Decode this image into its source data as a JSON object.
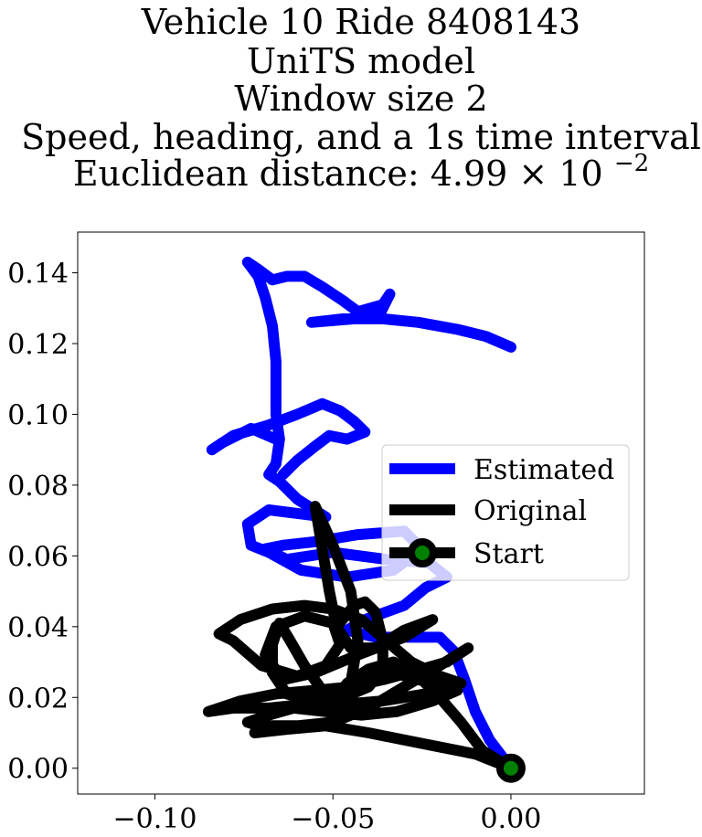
{
  "chart_data": {
    "type": "line",
    "title_lines": [
      "Vehicle 10 Ride 8408143",
      "UniTS model",
      "Window size 2",
      "Speed, heading, and a 1s time interval",
      "Euclidean distance: 4.99"
    ],
    "title_suffix": {
      "times": "×",
      "base": "10",
      "exponent": "−2"
    },
    "xlabel": "",
    "ylabel": "",
    "xlim": [
      -0.1217,
      0.0375
    ],
    "ylim": [
      -0.0073,
      0.1515
    ],
    "x_ticks": [
      {
        "value": -0.1,
        "label": "−0.10"
      },
      {
        "value": -0.05,
        "label": "−0.05"
      },
      {
        "value": 0.0,
        "label": "0.00"
      }
    ],
    "y_ticks": [
      {
        "value": 0.0,
        "label": "0.00"
      },
      {
        "value": 0.02,
        "label": "0.02"
      },
      {
        "value": 0.04,
        "label": "0.04"
      },
      {
        "value": 0.06,
        "label": "0.06"
      },
      {
        "value": 0.08,
        "label": "0.08"
      },
      {
        "value": 0.1,
        "label": "0.10"
      },
      {
        "value": 0.12,
        "label": "0.12"
      },
      {
        "value": 0.14,
        "label": "0.14"
      }
    ],
    "grid": false,
    "legend_position": "center-right",
    "series": [
      {
        "name": "Estimated",
        "color": "#0000ff",
        "points": [
          [
            0.0,
            0.0
          ],
          [
            -0.006,
            0.008
          ],
          [
            -0.01,
            0.016
          ],
          [
            -0.013,
            0.025
          ],
          [
            -0.016,
            0.033
          ],
          [
            -0.02,
            0.037
          ],
          [
            -0.028,
            0.037
          ],
          [
            -0.038,
            0.037
          ],
          [
            -0.046,
            0.039
          ],
          [
            -0.041,
            0.042
          ],
          [
            -0.03,
            0.046
          ],
          [
            -0.024,
            0.051
          ],
          [
            -0.018,
            0.054
          ],
          [
            -0.023,
            0.058
          ],
          [
            -0.035,
            0.059
          ],
          [
            -0.05,
            0.061
          ],
          [
            -0.063,
            0.059
          ],
          [
            -0.069,
            0.062
          ],
          [
            -0.064,
            0.063
          ],
          [
            -0.055,
            0.064
          ],
          [
            -0.043,
            0.066
          ],
          [
            -0.03,
            0.067
          ],
          [
            -0.025,
            0.062
          ],
          [
            -0.033,
            0.056
          ],
          [
            -0.046,
            0.054
          ],
          [
            -0.059,
            0.056
          ],
          [
            -0.068,
            0.061
          ],
          [
            -0.073,
            0.063
          ],
          [
            -0.074,
            0.069
          ],
          [
            -0.068,
            0.073
          ],
          [
            -0.06,
            0.072
          ],
          [
            -0.052,
            0.071
          ],
          [
            -0.06,
            0.076
          ],
          [
            -0.065,
            0.081
          ],
          [
            -0.068,
            0.083
          ],
          [
            -0.066,
            0.086
          ],
          [
            -0.065,
            0.093
          ],
          [
            -0.066,
            0.1
          ],
          [
            -0.066,
            0.106
          ],
          [
            -0.066,
            0.115
          ],
          [
            -0.067,
            0.125
          ],
          [
            -0.069,
            0.133
          ],
          [
            -0.071,
            0.139
          ],
          [
            -0.074,
            0.143
          ],
          [
            -0.071,
            0.141
          ],
          [
            -0.067,
            0.138
          ],
          [
            -0.063,
            0.139
          ],
          [
            -0.058,
            0.139
          ],
          [
            -0.053,
            0.136
          ],
          [
            -0.047,
            0.132
          ],
          [
            -0.043,
            0.129
          ],
          [
            -0.036,
            0.131
          ],
          [
            -0.034,
            0.134
          ],
          [
            -0.037,
            0.128
          ],
          [
            -0.044,
            0.127
          ],
          [
            -0.056,
            0.126
          ],
          [
            -0.047,
            0.127
          ],
          [
            -0.036,
            0.127
          ],
          [
            -0.026,
            0.126
          ],
          [
            -0.015,
            0.124
          ],
          [
            -0.007,
            0.122
          ],
          [
            0.0,
            0.119
          ]
        ]
      },
      {
        "name": "Estimated (overlay)",
        "color": "#0000ff",
        "points": [
          [
            -0.066,
            0.093
          ],
          [
            -0.073,
            0.096
          ],
          [
            -0.081,
            0.092
          ],
          [
            -0.084,
            0.09
          ],
          [
            -0.078,
            0.094
          ],
          [
            -0.068,
            0.097
          ],
          [
            -0.06,
            0.1
          ],
          [
            -0.053,
            0.103
          ],
          [
            -0.048,
            0.101
          ],
          [
            -0.044,
            0.098
          ],
          [
            -0.041,
            0.095
          ],
          [
            -0.046,
            0.093
          ],
          [
            -0.051,
            0.094
          ],
          [
            -0.055,
            0.091
          ],
          [
            -0.06,
            0.087
          ],
          [
            -0.064,
            0.083
          ]
        ]
      },
      {
        "name": "Original",
        "color": "#000000",
        "points": [
          [
            0.0,
            0.0
          ],
          [
            -0.008,
            0.005
          ],
          [
            -0.014,
            0.013
          ],
          [
            -0.02,
            0.02
          ],
          [
            -0.026,
            0.026
          ],
          [
            -0.033,
            0.03
          ],
          [
            -0.04,
            0.028
          ],
          [
            -0.046,
            0.024
          ],
          [
            -0.049,
            0.02
          ],
          [
            -0.048,
            0.014
          ],
          [
            -0.045,
            0.024
          ],
          [
            -0.043,
            0.036
          ],
          [
            -0.045,
            0.05
          ],
          [
            -0.05,
            0.063
          ],
          [
            -0.055,
            0.074
          ],
          [
            -0.053,
            0.062
          ],
          [
            -0.051,
            0.05
          ],
          [
            -0.049,
            0.04
          ],
          [
            -0.045,
            0.034
          ],
          [
            -0.038,
            0.034
          ],
          [
            -0.03,
            0.039
          ],
          [
            -0.022,
            0.042
          ],
          [
            -0.03,
            0.037
          ],
          [
            -0.043,
            0.032
          ],
          [
            -0.055,
            0.027
          ],
          [
            -0.064,
            0.025
          ],
          [
            -0.069,
            0.032
          ],
          [
            -0.066,
            0.04
          ],
          [
            -0.058,
            0.043
          ],
          [
            -0.05,
            0.041
          ],
          [
            -0.048,
            0.035
          ],
          [
            -0.052,
            0.029
          ],
          [
            -0.06,
            0.026
          ],
          [
            -0.07,
            0.029
          ],
          [
            -0.078,
            0.036
          ],
          [
            -0.082,
            0.038
          ],
          [
            -0.076,
            0.042
          ],
          [
            -0.067,
            0.045
          ],
          [
            -0.058,
            0.046
          ],
          [
            -0.05,
            0.045
          ],
          [
            -0.042,
            0.042
          ],
          [
            -0.035,
            0.036
          ],
          [
            -0.028,
            0.03
          ],
          [
            -0.02,
            0.026
          ],
          [
            -0.014,
            0.024
          ],
          [
            -0.024,
            0.021
          ],
          [
            -0.036,
            0.019
          ],
          [
            -0.048,
            0.018
          ],
          [
            -0.058,
            0.018
          ],
          [
            -0.068,
            0.017
          ],
          [
            -0.078,
            0.017
          ],
          [
            -0.085,
            0.016
          ],
          [
            -0.076,
            0.019
          ],
          [
            -0.066,
            0.021
          ],
          [
            -0.055,
            0.022
          ],
          [
            -0.045,
            0.023
          ],
          [
            -0.036,
            0.025
          ],
          [
            -0.025,
            0.028
          ],
          [
            -0.018,
            0.03
          ],
          [
            -0.012,
            0.034
          ],
          [
            -0.02,
            0.029
          ],
          [
            -0.03,
            0.023
          ],
          [
            -0.04,
            0.017
          ],
          [
            -0.05,
            0.013
          ],
          [
            -0.06,
            0.012
          ],
          [
            -0.068,
            0.012
          ],
          [
            -0.072,
            0.01
          ],
          [
            -0.063,
            0.011
          ],
          [
            -0.052,
            0.012
          ],
          [
            -0.04,
            0.01
          ],
          [
            -0.03,
            0.008
          ],
          [
            -0.02,
            0.006
          ],
          [
            -0.01,
            0.004
          ],
          [
            0.0,
            0.0
          ]
        ]
      },
      {
        "name": "Original (overlay)",
        "color": "#000000",
        "points": [
          [
            -0.049,
            0.04
          ],
          [
            -0.044,
            0.046
          ],
          [
            -0.041,
            0.047
          ],
          [
            -0.038,
            0.044
          ],
          [
            -0.036,
            0.036
          ],
          [
            -0.036,
            0.028
          ],
          [
            -0.04,
            0.023
          ],
          [
            -0.047,
            0.02
          ],
          [
            -0.053,
            0.022
          ],
          [
            -0.058,
            0.029
          ],
          [
            -0.062,
            0.036
          ],
          [
            -0.065,
            0.041
          ],
          [
            -0.067,
            0.035
          ],
          [
            -0.067,
            0.027
          ],
          [
            -0.063,
            0.021
          ],
          [
            -0.056,
            0.019
          ],
          [
            -0.047,
            0.021
          ],
          [
            -0.04,
            0.025
          ],
          [
            -0.033,
            0.027
          ],
          [
            -0.026,
            0.025
          ],
          [
            -0.019,
            0.024
          ],
          [
            -0.015,
            0.022
          ],
          [
            -0.022,
            0.019
          ],
          [
            -0.032,
            0.016
          ],
          [
            -0.042,
            0.015
          ],
          [
            -0.052,
            0.016
          ],
          [
            -0.061,
            0.017
          ],
          [
            -0.068,
            0.015
          ],
          [
            -0.074,
            0.013
          ],
          [
            -0.068,
            0.011
          ]
        ]
      }
    ],
    "start_point": {
      "x": 0.0,
      "y": 0.0,
      "marker_fill": "#008000",
      "marker_edge": "#000000"
    },
    "legend": [
      {
        "label": "Estimated",
        "color": "#0000ff",
        "kind": "line"
      },
      {
        "label": "Original",
        "color": "#000000",
        "kind": "line"
      },
      {
        "label": "Start",
        "color": "#000000",
        "kind": "marker",
        "marker_fill": "#008000"
      }
    ]
  }
}
